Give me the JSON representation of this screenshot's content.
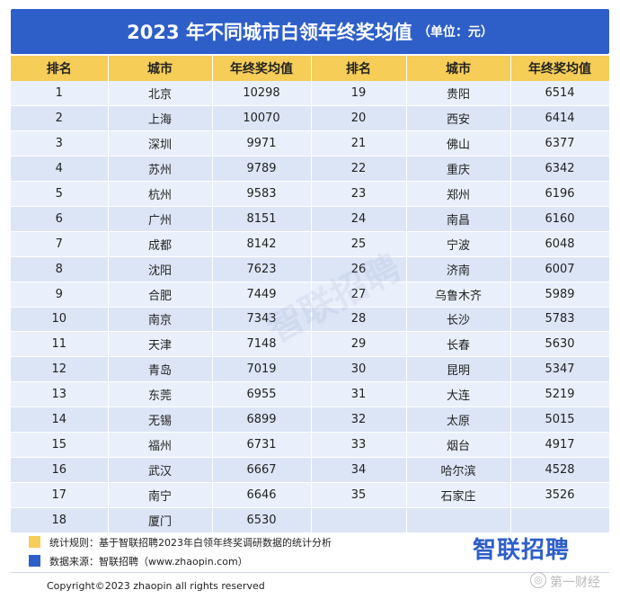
{
  "title": {
    "main": "2023 年不同城市白领年终奖均值",
    "unit": "（单位：元）"
  },
  "headers": [
    "排名",
    "城市",
    "年终奖均值",
    "排名",
    "城市",
    "年终奖均值"
  ],
  "left_rows": [
    {
      "rank": "1",
      "city": "北京",
      "value": "10298"
    },
    {
      "rank": "2",
      "city": "上海",
      "value": "10070"
    },
    {
      "rank": "3",
      "city": "深圳",
      "value": "9971"
    },
    {
      "rank": "4",
      "city": "苏州",
      "value": "9789"
    },
    {
      "rank": "5",
      "city": "杭州",
      "value": "9583"
    },
    {
      "rank": "6",
      "city": "广州",
      "value": "8151"
    },
    {
      "rank": "7",
      "city": "成都",
      "value": "8142"
    },
    {
      "rank": "8",
      "city": "沈阳",
      "value": "7623"
    },
    {
      "rank": "9",
      "city": "合肥",
      "value": "7449"
    },
    {
      "rank": "10",
      "city": "南京",
      "value": "7343"
    },
    {
      "rank": "11",
      "city": "天津",
      "value": "7148"
    },
    {
      "rank": "12",
      "city": "青岛",
      "value": "7019"
    },
    {
      "rank": "13",
      "city": "东莞",
      "value": "6955"
    },
    {
      "rank": "14",
      "city": "无锡",
      "value": "6899"
    },
    {
      "rank": "15",
      "city": "福州",
      "value": "6731"
    },
    {
      "rank": "16",
      "city": "武汉",
      "value": "6667"
    },
    {
      "rank": "17",
      "city": "南宁",
      "value": "6646"
    },
    {
      "rank": "18",
      "city": "厦门",
      "value": "6530"
    }
  ],
  "right_rows": [
    {
      "rank": "19",
      "city": "贵阳",
      "value": "6514"
    },
    {
      "rank": "20",
      "city": "西安",
      "value": "6414"
    },
    {
      "rank": "21",
      "city": "佛山",
      "value": "6377"
    },
    {
      "rank": "22",
      "city": "重庆",
      "value": "6342"
    },
    {
      "rank": "23",
      "city": "郑州",
      "value": "6196"
    },
    {
      "rank": "24",
      "city": "南昌",
      "value": "6160"
    },
    {
      "rank": "25",
      "city": "宁波",
      "value": "6048"
    },
    {
      "rank": "26",
      "city": "济南",
      "value": "6007"
    },
    {
      "rank": "27",
      "city": "乌鲁木齐",
      "value": "5989"
    },
    {
      "rank": "28",
      "city": "长沙",
      "value": "5783"
    },
    {
      "rank": "29",
      "city": "长春",
      "value": "5630"
    },
    {
      "rank": "30",
      "city": "昆明",
      "value": "5347"
    },
    {
      "rank": "31",
      "city": "大连",
      "value": "5219"
    },
    {
      "rank": "32",
      "city": "太原",
      "value": "5015"
    },
    {
      "rank": "33",
      "city": "烟台",
      "value": "4917"
    },
    {
      "rank": "34",
      "city": "哈尔滨",
      "value": "4528"
    },
    {
      "rank": "35",
      "city": "石家庄",
      "value": "3526"
    },
    {
      "rank": "",
      "city": "",
      "value": ""
    }
  ],
  "notes": {
    "stat_rule": "统计规则：基于智联招聘2023年白领年终奖调研数据的统计分析",
    "source": "数据来源：智联招聘（www.zhaopin.com）"
  },
  "logo": "智联招聘",
  "watermark": "智联招聘",
  "copyright": "Copyright©2023 zhaopin all rights reserved",
  "corner_watermark": "第一财经",
  "colors": {
    "title_bg": "#2e5fc9",
    "header_bg": "#f5cd57",
    "row_light": "#eaf0fb",
    "row_dark": "#dbe5f6"
  }
}
